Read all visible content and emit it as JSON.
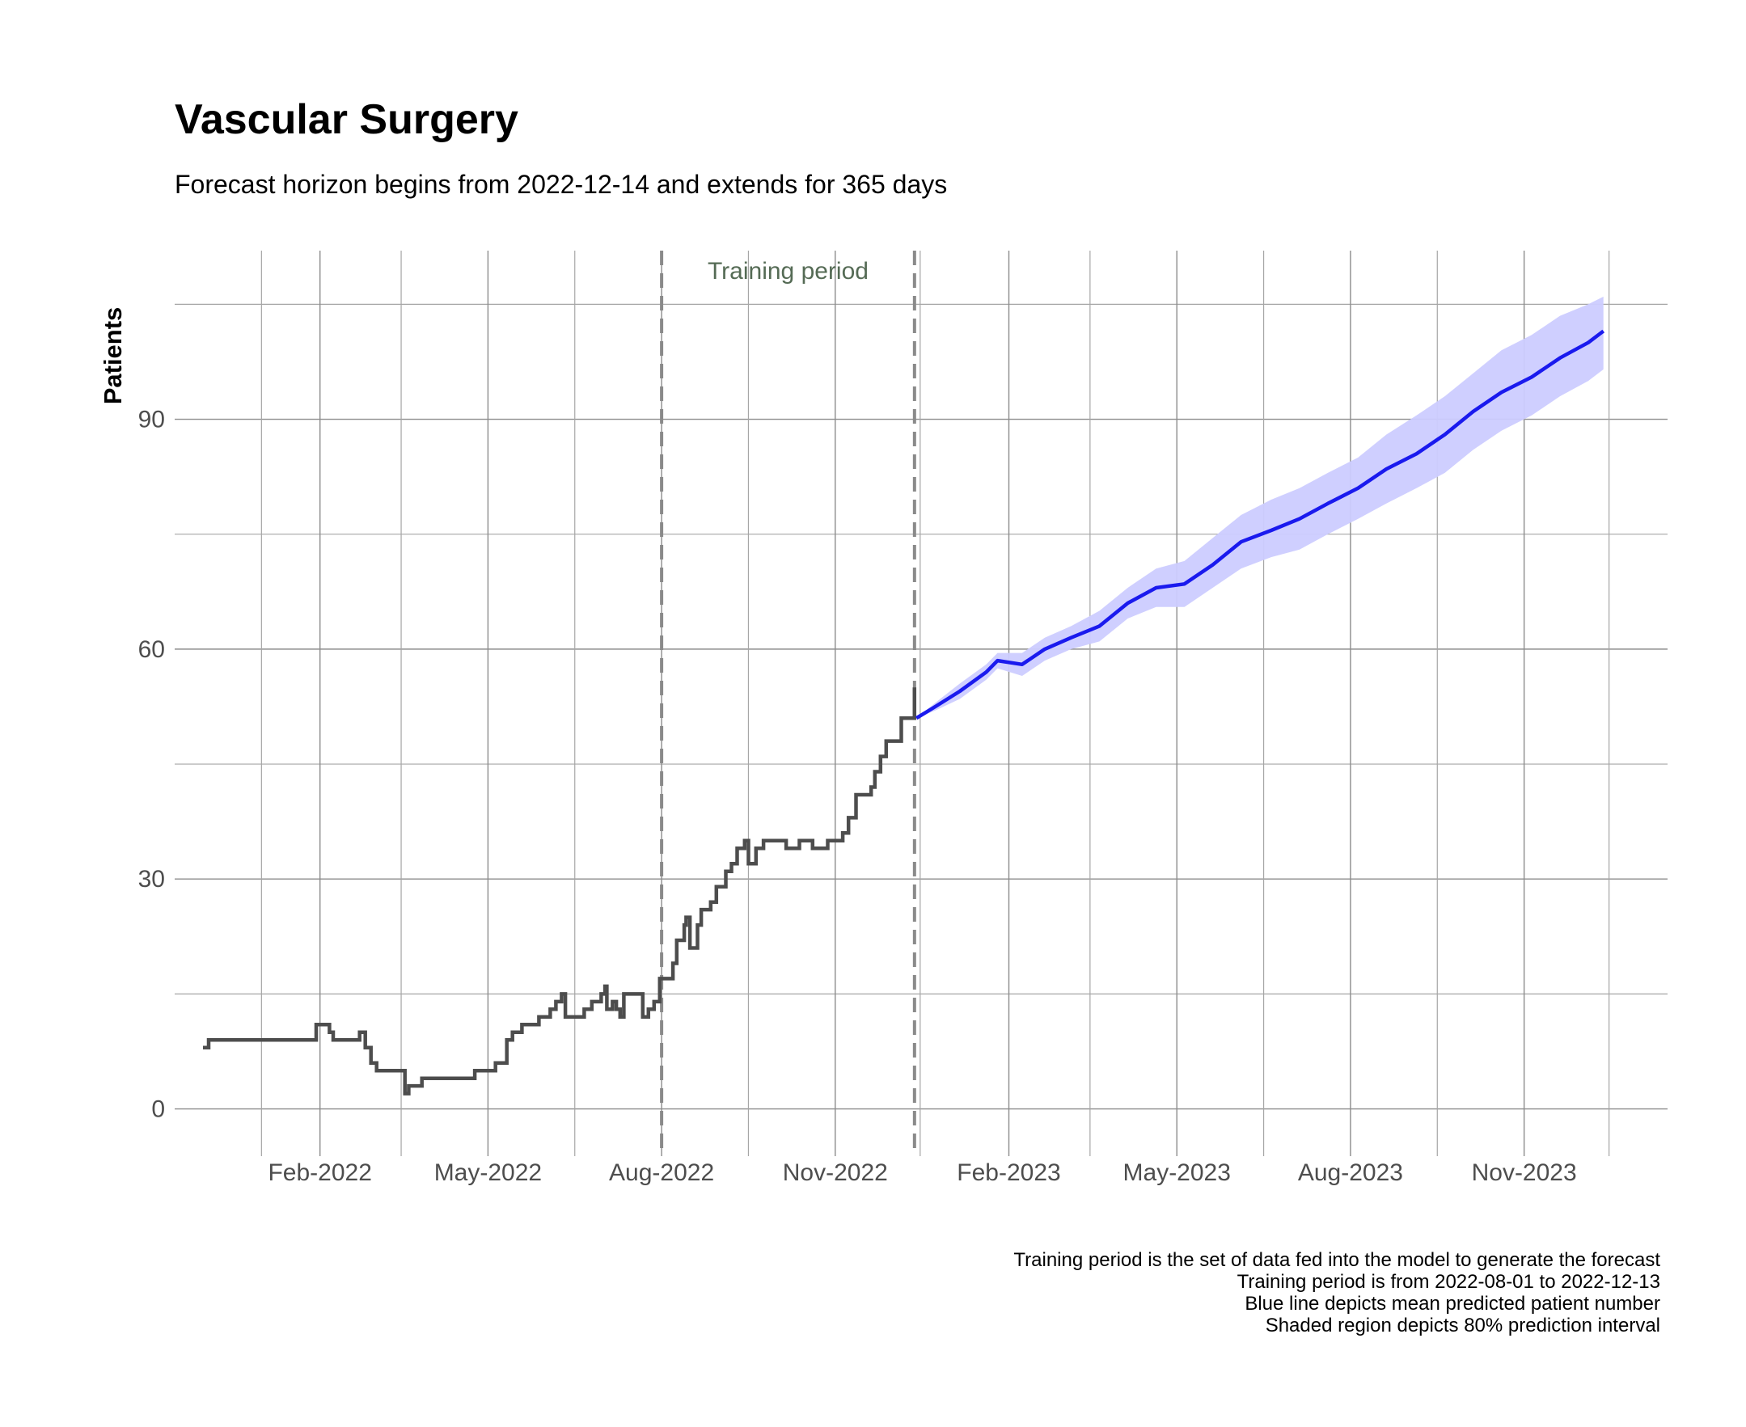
{
  "chart_data": {
    "type": "line",
    "title": "Vascular Surgery",
    "subtitle": "Forecast horizon begins from 2022-12-14 and extends for 365 days",
    "xlabel": "",
    "ylabel": "Patients",
    "xlim": [
      "2021-11-16",
      "2024-01-16"
    ],
    "ylim": [
      -3,
      112
    ],
    "x_ticks": [
      {
        "date": "2022-02-01",
        "label": "Feb-2022"
      },
      {
        "date": "2022-05-01",
        "label": "May-2022"
      },
      {
        "date": "2022-08-01",
        "label": "Aug-2022"
      },
      {
        "date": "2022-11-01",
        "label": "Nov-2022"
      },
      {
        "date": "2023-02-01",
        "label": "Feb-2023"
      },
      {
        "date": "2023-05-01",
        "label": "May-2023"
      },
      {
        "date": "2023-08-01",
        "label": "Aug-2023"
      },
      {
        "date": "2023-11-01",
        "label": "Nov-2023"
      }
    ],
    "x_minor_ticks": [
      "2022-01-01",
      "2022-03-16",
      "2022-06-16",
      "2022-09-16",
      "2022-12-16",
      "2023-03-16",
      "2023-06-16",
      "2023-09-16",
      "2023-12-16"
    ],
    "y_ticks": [
      0,
      30,
      60,
      90
    ],
    "y_minor_ticks": [
      15,
      45,
      75,
      105
    ],
    "grid": true,
    "annotations": [
      {
        "text": "Training period",
        "x_start": "2022-08-01",
        "x_end": "2022-12-13",
        "style": "dashed vertical lines"
      }
    ],
    "series": [
      {
        "kind": "observed",
        "color": "#4d4d4d",
        "step": true,
        "points": [
          [
            "2021-12-01",
            8
          ],
          [
            "2021-12-04",
            9
          ],
          [
            "2022-01-30",
            11
          ],
          [
            "2022-02-06",
            10
          ],
          [
            "2022-02-08",
            9
          ],
          [
            "2022-02-22",
            10
          ],
          [
            "2022-02-25",
            8
          ],
          [
            "2022-02-28",
            6
          ],
          [
            "2022-03-03",
            5
          ],
          [
            "2022-03-18",
            2
          ],
          [
            "2022-03-20",
            3
          ],
          [
            "2022-03-27",
            4
          ],
          [
            "2022-04-24",
            5
          ],
          [
            "2022-05-05",
            6
          ],
          [
            "2022-05-11",
            9
          ],
          [
            "2022-05-14",
            10
          ],
          [
            "2022-05-19",
            11
          ],
          [
            "2022-05-28",
            12
          ],
          [
            "2022-06-03",
            13
          ],
          [
            "2022-06-06",
            14
          ],
          [
            "2022-06-09",
            15
          ],
          [
            "2022-06-11",
            12
          ],
          [
            "2022-06-21",
            13
          ],
          [
            "2022-06-25",
            14
          ],
          [
            "2022-06-30",
            15
          ],
          [
            "2022-07-02",
            16
          ],
          [
            "2022-07-03",
            13
          ],
          [
            "2022-07-06",
            14
          ],
          [
            "2022-07-08",
            13
          ],
          [
            "2022-07-10",
            12
          ],
          [
            "2022-07-12",
            15
          ],
          [
            "2022-07-21",
            15
          ],
          [
            "2022-07-22",
            12
          ],
          [
            "2022-07-25",
            13
          ],
          [
            "2022-07-28",
            14
          ],
          [
            "2022-07-31",
            17
          ],
          [
            "2022-08-07",
            19
          ],
          [
            "2022-08-09",
            22
          ],
          [
            "2022-08-13",
            24
          ],
          [
            "2022-08-14",
            25
          ],
          [
            "2022-08-16",
            21
          ],
          [
            "2022-08-20",
            24
          ],
          [
            "2022-08-22",
            26
          ],
          [
            "2022-08-27",
            27
          ],
          [
            "2022-08-30",
            29
          ],
          [
            "2022-09-04",
            31
          ],
          [
            "2022-09-07",
            32
          ],
          [
            "2022-09-10",
            34
          ],
          [
            "2022-09-14",
            35
          ],
          [
            "2022-09-16",
            32
          ],
          [
            "2022-09-20",
            34
          ],
          [
            "2022-09-24",
            35
          ],
          [
            "2022-10-06",
            34
          ],
          [
            "2022-10-13",
            35
          ],
          [
            "2022-10-20",
            34
          ],
          [
            "2022-10-28",
            35
          ],
          [
            "2022-11-05",
            36
          ],
          [
            "2022-11-08",
            38
          ],
          [
            "2022-11-12",
            41
          ],
          [
            "2022-11-20",
            42
          ],
          [
            "2022-11-22",
            44
          ],
          [
            "2022-11-25",
            46
          ],
          [
            "2022-11-28",
            48
          ],
          [
            "2022-12-06",
            51
          ],
          [
            "2022-12-13",
            55
          ]
        ]
      },
      {
        "kind": "forecast_mean",
        "color": "#1a1aee",
        "interval": "80%",
        "band_color": "#ccccff",
        "points": [
          [
            "2022-12-14",
            51,
            51,
            51
          ],
          [
            "2022-12-24",
            52.5,
            52,
            53
          ],
          [
            "2023-01-06",
            54.5,
            53.5,
            55.5
          ],
          [
            "2023-01-20",
            57,
            56,
            58
          ],
          [
            "2023-01-26",
            58.5,
            57.5,
            59.5
          ],
          [
            "2023-02-08",
            58,
            56.5,
            59.5
          ],
          [
            "2023-02-20",
            60,
            58.5,
            61.5
          ],
          [
            "2023-03-06",
            61.5,
            60,
            63
          ],
          [
            "2023-03-21",
            63,
            61,
            65
          ],
          [
            "2023-04-05",
            66,
            64,
            68
          ],
          [
            "2023-04-20",
            68,
            65.5,
            70.5
          ],
          [
            "2023-05-05",
            68.5,
            65.5,
            71.5
          ],
          [
            "2023-05-20",
            71,
            68,
            74.5
          ],
          [
            "2023-06-04",
            74,
            70.5,
            77.5
          ],
          [
            "2023-06-20",
            75.5,
            72,
            79.5
          ],
          [
            "2023-07-05",
            77,
            73,
            81
          ],
          [
            "2023-07-20",
            79,
            75,
            83
          ],
          [
            "2023-08-05",
            81,
            77,
            85
          ],
          [
            "2023-08-20",
            83.5,
            79,
            88
          ],
          [
            "2023-09-05",
            85.5,
            81,
            90.5
          ],
          [
            "2023-09-20",
            88,
            83,
            93
          ],
          [
            "2023-10-05",
            91,
            86,
            96
          ],
          [
            "2023-10-20",
            93.5,
            88.5,
            99
          ],
          [
            "2023-11-05",
            95.5,
            90.5,
            101
          ],
          [
            "2023-11-20",
            98,
            93,
            103.5
          ],
          [
            "2023-12-05",
            100,
            95,
            105
          ],
          [
            "2023-12-13",
            101.5,
            96.5,
            106
          ]
        ]
      }
    ]
  },
  "caption": [
    "Training period is the set of data fed into the model to generate the forecast",
    "Training period is from 2022-08-01 to 2022-12-13",
    "Blue line depicts mean predicted patient number",
    "Shaded region depicts 80% prediction interval"
  ]
}
